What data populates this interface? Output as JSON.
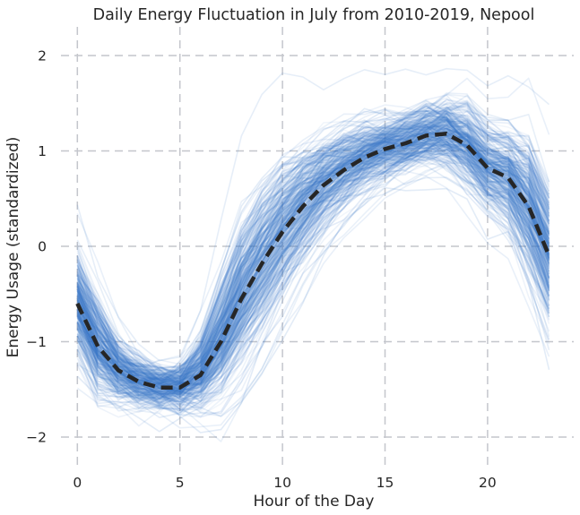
{
  "chart_data": {
    "type": "line",
    "title": "Daily Energy Fluctuation in July from 2010-2019, Nepool",
    "xlabel": "Hour of the Day",
    "ylabel": "Energy Usage (standardized)",
    "xlim": [
      -0.8,
      24.2
    ],
    "ylim": [
      -2.3,
      2.3
    ],
    "xticks": [
      0,
      5,
      10,
      15,
      20
    ],
    "yticks": [
      2,
      1,
      0,
      -1,
      -2
    ],
    "ytick_labels": [
      "2",
      "1",
      "0",
      "−1",
      "−2"
    ],
    "grid": true,
    "grid_style": "dashed",
    "colors": {
      "daily_lines": "#3a78c9",
      "mean_line": "#262626",
      "grid": "#c4c6cc"
    },
    "hours": [
      0,
      1,
      2,
      3,
      4,
      5,
      6,
      7,
      8,
      9,
      10,
      11,
      12,
      13,
      14,
      15,
      16,
      17,
      18,
      19,
      20,
      21,
      22,
      23
    ],
    "series": [
      {
        "values": [
          -0.6,
          -1.05,
          -1.3,
          -1.42,
          -1.48,
          -1.48,
          -1.35,
          -1.0,
          -0.55,
          -0.18,
          0.15,
          0.42,
          0.64,
          0.8,
          0.93,
          1.02,
          1.08,
          1.16,
          1.18,
          1.06,
          0.82,
          0.72,
          0.42,
          -0.1
        ]
      }
    ],
    "daily_band": {
      "count": 310,
      "spread": [
        0.2,
        0.15,
        0.1,
        0.09,
        0.08,
        0.09,
        0.12,
        0.2,
        0.28,
        0.3,
        0.28,
        0.25,
        0.2,
        0.17,
        0.14,
        0.12,
        0.12,
        0.13,
        0.15,
        0.17,
        0.18,
        0.2,
        0.25,
        0.3
      ]
    }
  }
}
